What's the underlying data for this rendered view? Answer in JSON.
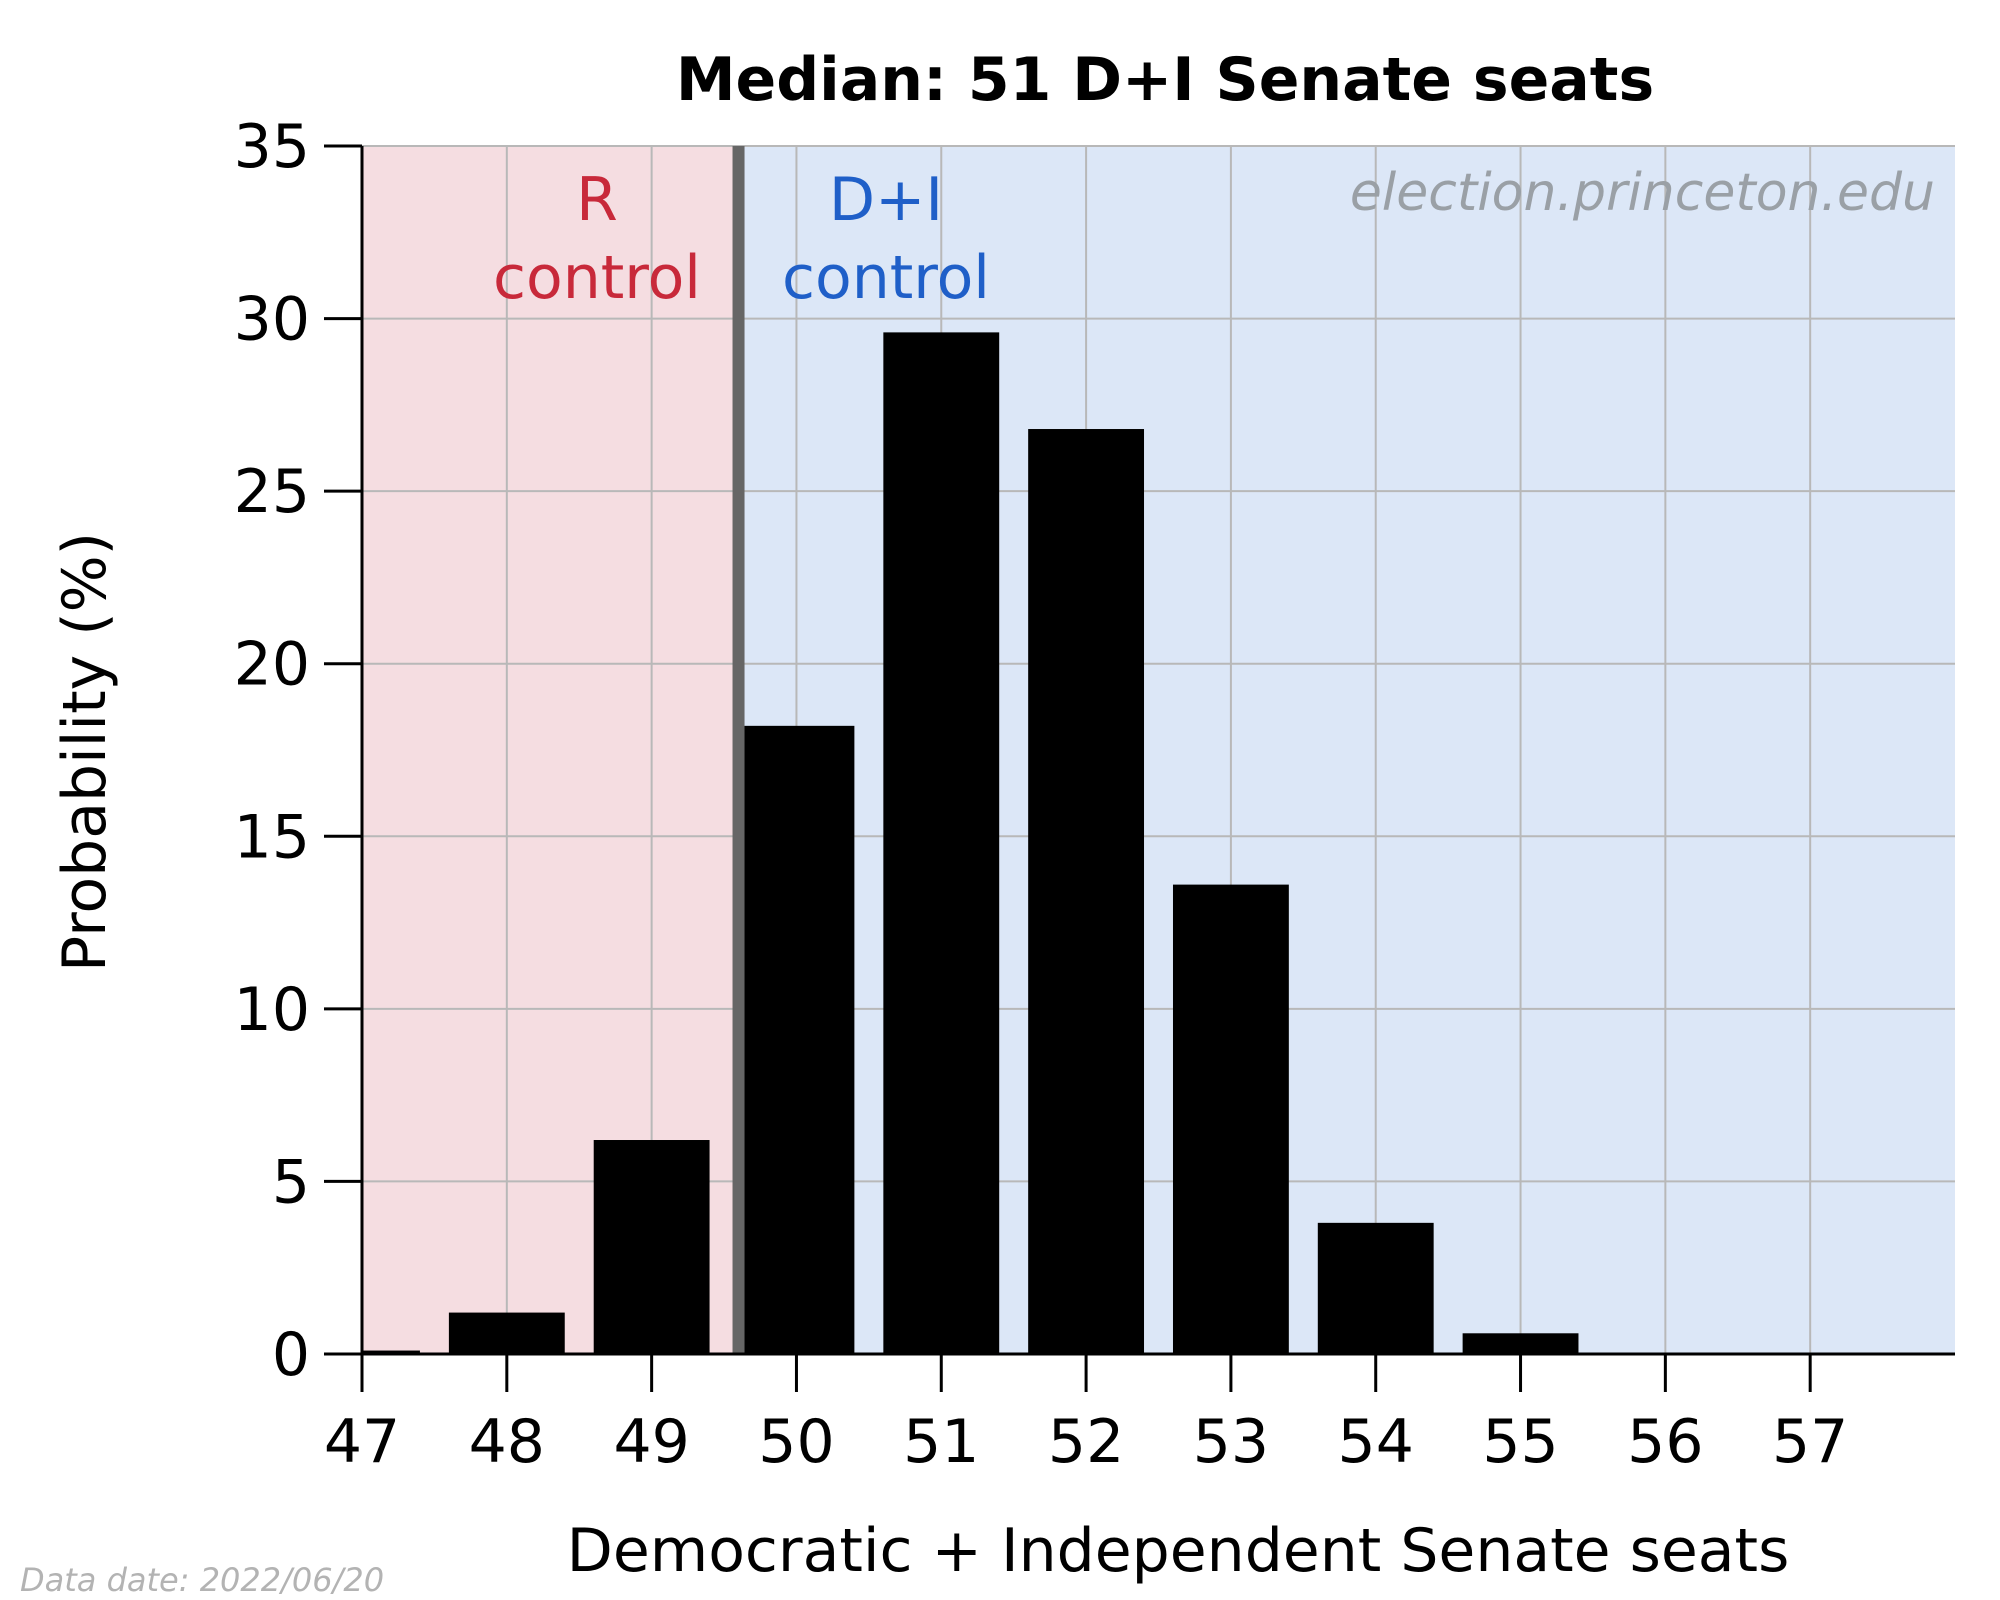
{
  "chart_data": {
    "type": "bar",
    "title": "Median: 51 D+I Senate seats",
    "xlabel": "Democratic + Independent Senate seats",
    "ylabel": "Probability (%)",
    "x_ticks": [
      47,
      48,
      49,
      50,
      51,
      52,
      53,
      54,
      55,
      56,
      57
    ],
    "y_ticks": [
      0,
      5,
      10,
      15,
      20,
      25,
      30,
      35
    ],
    "xlim": [
      47,
      58
    ],
    "ylim": [
      0,
      35
    ],
    "categories": [
      47,
      48,
      49,
      50,
      51,
      52,
      53,
      54,
      55,
      56,
      57
    ],
    "values": [
      0.1,
      1.2,
      6.2,
      18.2,
      29.6,
      26.8,
      13.6,
      3.8,
      0.6,
      0,
      0
    ],
    "control_threshold": 49.6,
    "regions": [
      {
        "label_line1": "R",
        "label_line2": "control",
        "fill": "#f5dde1",
        "text_color": "#c8293a"
      },
      {
        "label_line1": "D+I",
        "label_line2": "control",
        "fill": "#dce7f7",
        "text_color": "#1f5fc8"
      }
    ],
    "grid": true,
    "bar_color": "#000000",
    "threshold_line_color": "#666666",
    "watermark": "election.princeton.edu",
    "footnote": "Data date: 2022/06/20"
  }
}
